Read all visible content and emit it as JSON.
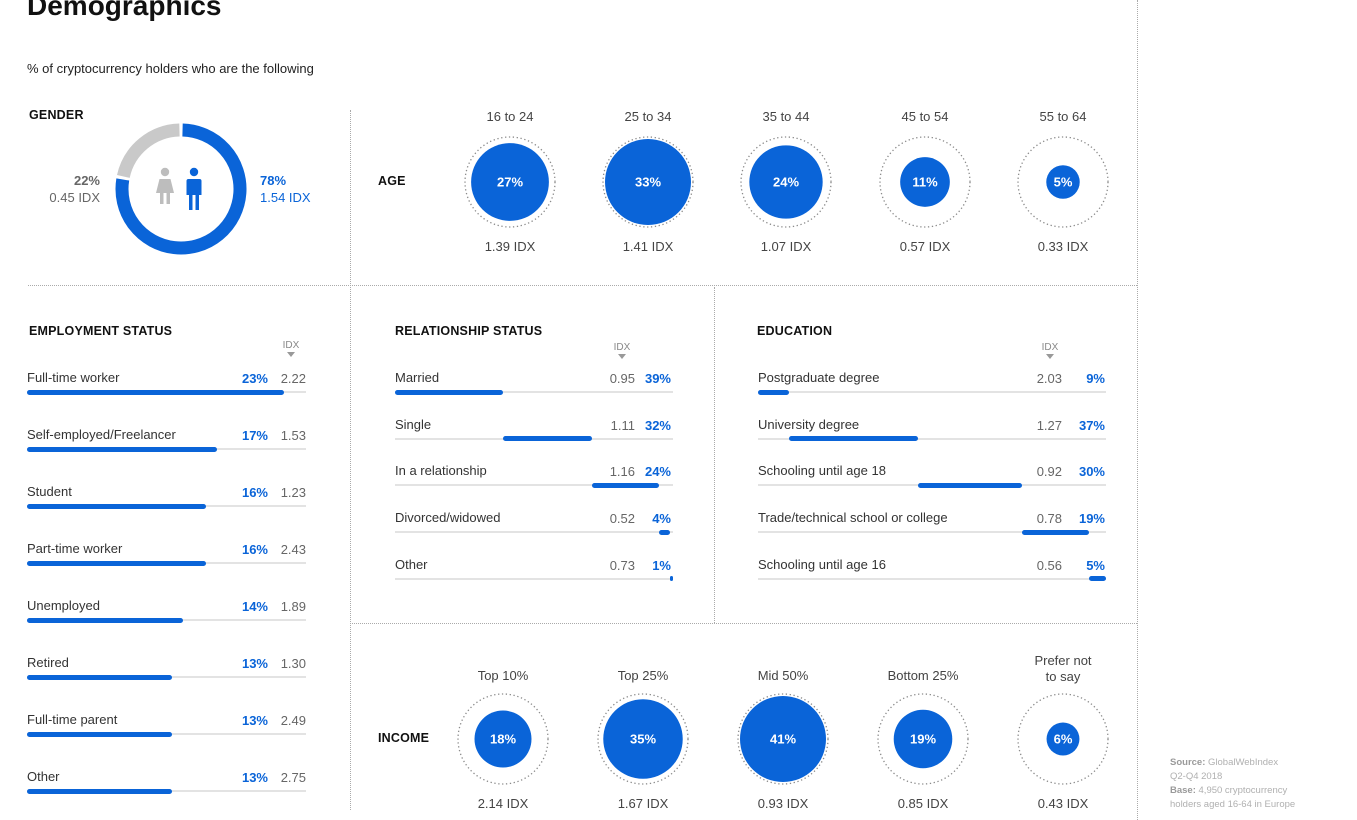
{
  "header": {
    "title": "Demographics",
    "subtitle": "% of cryptocurrency holders who are the following"
  },
  "colors": {
    "accent": "#0a64d8",
    "grey": "#c9c9c9",
    "track": "#e3e3e3"
  },
  "labels": {
    "idx": "IDX"
  },
  "chart_data": [
    {
      "type": "pie",
      "name": "gender",
      "title": "GENDER",
      "slices": [
        {
          "name": "Female",
          "value": 22,
          "value_label": "22%",
          "idx_label": "0.45 IDX",
          "icon": "female-icon"
        },
        {
          "name": "Male",
          "value": 78,
          "value_label": "78%",
          "idx_label": "1.54 IDX",
          "icon": "male-icon"
        }
      ]
    },
    {
      "type": "scatter",
      "name": "age",
      "title": "AGE",
      "categories": [
        "16 to 24",
        "25 to 34",
        "35 to 44",
        "45 to 54",
        "55 to 64"
      ],
      "values": [
        27,
        33,
        24,
        11,
        5
      ],
      "value_labels": [
        "27%",
        "33%",
        "24%",
        "11%",
        "5%"
      ],
      "idx_labels": [
        "1.39 IDX",
        "1.41 IDX",
        "1.07 IDX",
        "0.57 IDX",
        "0.33 IDX"
      ]
    },
    {
      "type": "bar",
      "name": "employment",
      "title": "EMPLOYMENT STATUS",
      "categories": [
        "Full-time worker",
        "Self-employed/Freelancer",
        "Student",
        "Part-time worker",
        "Unemployed",
        "Retired",
        "Full-time parent",
        "Other"
      ],
      "values": [
        23,
        17,
        16,
        16,
        14,
        13,
        13,
        13
      ],
      "value_labels": [
        "23%",
        "17%",
        "16%",
        "16%",
        "14%",
        "13%",
        "13%",
        "13%"
      ],
      "idx_labels": [
        "2.22",
        "1.53",
        "1.23",
        "2.43",
        "1.89",
        "1.30",
        "2.49",
        "2.75"
      ],
      "xlim": [
        0,
        25
      ]
    },
    {
      "type": "bar",
      "name": "relationship",
      "title": "RELATIONSHIP STATUS",
      "categories": [
        "Married",
        "Single",
        "In a relationship",
        "Divorced/widowed",
        "Other"
      ],
      "values": [
        39,
        32,
        24,
        4,
        1
      ],
      "value_labels": [
        "39%",
        "32%",
        "24%",
        "4%",
        "1%"
      ],
      "idx_labels": [
        "0.95",
        "1.11",
        "1.16",
        "0.52",
        "0.73"
      ],
      "xlim": [
        0,
        100
      ]
    },
    {
      "type": "bar",
      "name": "education",
      "title": "EDUCATION",
      "categories": [
        "Postgraduate degree",
        "University degree",
        "Schooling until age 18",
        "Trade/technical school or college",
        "Schooling until age 16"
      ],
      "values": [
        9,
        37,
        30,
        19,
        5
      ],
      "value_labels": [
        "9%",
        "37%",
        "30%",
        "19%",
        "5%"
      ],
      "idx_labels": [
        "2.03",
        "1.27",
        "0.92",
        "0.78",
        "0.56"
      ],
      "xlim": [
        0,
        100
      ]
    },
    {
      "type": "scatter",
      "name": "income",
      "title": "INCOME",
      "categories": [
        "Top 10%",
        "Top 25%",
        "Mid 50%",
        "Bottom 25%",
        "Prefer not to say"
      ],
      "values": [
        18,
        35,
        41,
        19,
        6
      ],
      "value_labels": [
        "18%",
        "35%",
        "41%",
        "19%",
        "6%"
      ],
      "idx_labels": [
        "2.14 IDX",
        "1.67 IDX",
        "0.93 IDX",
        "0.85 IDX",
        "0.43 IDX"
      ]
    }
  ],
  "source": {
    "source_label": "Source:",
    "source_text": "GlobalWebIndex",
    "period": "Q2-Q4 2018",
    "base_label": "Base:",
    "base_text": "4,950 cryptocurrency holders aged 16-64 in Europe"
  }
}
